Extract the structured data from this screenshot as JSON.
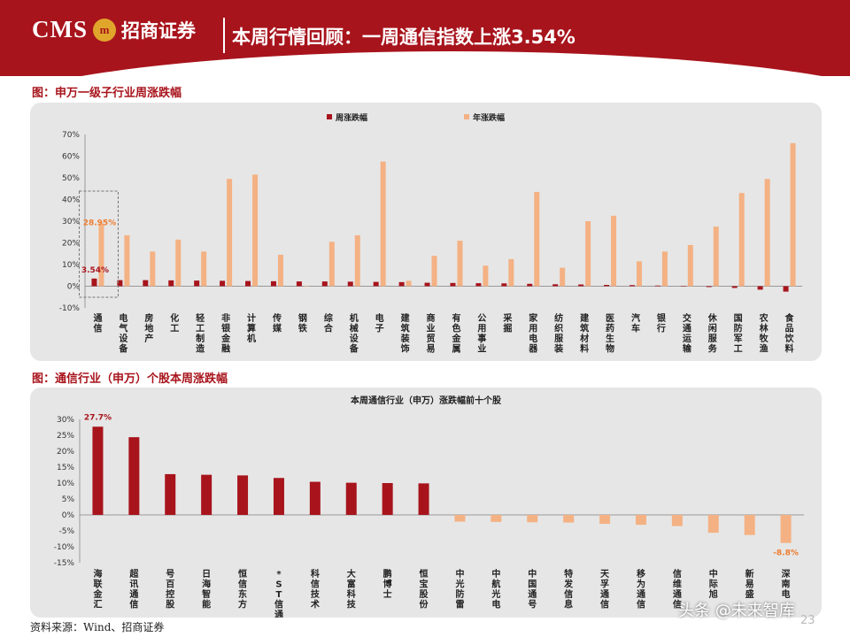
{
  "header": {
    "logo_text": "CMS",
    "logo_emblem": "m",
    "logo_cn": "招商证券",
    "title": "本周行情回顾：一周通信指数上涨3.54%"
  },
  "captions": {
    "chart1": "图：申万一级子行业周涨跌幅",
    "chart2": "图：通信行业（申万）个股本周涨跌幅"
  },
  "footer": {
    "source": "资料来源：Wind、招商证券",
    "page": "23",
    "watermark": "头条 @未来智库"
  },
  "chart_data": [
    {
      "type": "bar",
      "title": "",
      "ylim": [
        -10,
        70
      ],
      "yticks": [
        -10,
        0,
        10,
        20,
        30,
        40,
        50,
        60,
        70
      ],
      "ytick_labels": [
        "-10%",
        "0%",
        "10%",
        "20%",
        "30%",
        "40%",
        "50%",
        "60%",
        "70%"
      ],
      "legend_position": "top-center",
      "grid": false,
      "categories": [
        "通信",
        "电气设备",
        "房地产",
        "化工",
        "轻工制造",
        "非银金融",
        "计算机",
        "传媒",
        "钢铁",
        "综合",
        "机械设备",
        "电子",
        "建筑装饰",
        "商业贸易",
        "有色金属",
        "公用事业",
        "采掘",
        "家用电器",
        "纺织服装",
        "建筑材料",
        "医药生物",
        "汽车",
        "银行",
        "交通运输",
        "休闲服务",
        "国防军工",
        "农林牧渔",
        "食品饮料"
      ],
      "series": [
        {
          "name": "周涨跌幅",
          "color": "#a8141c",
          "values": [
            3.54,
            2.8,
            2.8,
            2.7,
            2.6,
            2.5,
            2.4,
            2.3,
            2.2,
            2.2,
            2.1,
            2.0,
            1.9,
            1.6,
            1.5,
            1.4,
            1.3,
            1.1,
            0.9,
            0.8,
            0.6,
            0.5,
            0.3,
            0.1,
            -0.4,
            -0.8,
            -1.6,
            -2.5
          ]
        },
        {
          "name": "年涨跌幅",
          "color": "#f4b183",
          "values": [
            28.95,
            23.5,
            16,
            21.5,
            16,
            49.5,
            51.5,
            14.5,
            0,
            20.5,
            23.5,
            57.5,
            2.5,
            14,
            21,
            9.5,
            12.5,
            43.5,
            8.5,
            30,
            32.5,
            11.5,
            16,
            19,
            27.5,
            43,
            49.5,
            66
          ]
        }
      ],
      "annotations": [
        {
          "category": "通信",
          "series": "年涨跌幅",
          "text": "28.95%"
        },
        {
          "category": "通信",
          "series": "周涨跌幅",
          "text": "3.54%"
        }
      ]
    },
    {
      "type": "bar",
      "title": "本周通信行业（申万）涨跌幅前十个股",
      "ylim": [
        -15,
        30
      ],
      "yticks": [
        -15,
        -10,
        -5,
        0,
        5,
        10,
        15,
        20,
        25,
        30
      ],
      "ytick_labels": [
        "-15%",
        "-10%",
        "-5%",
        "0%",
        "5%",
        "10%",
        "15%",
        "20%",
        "25%",
        "30%"
      ],
      "grid": false,
      "positive_color": "#a8141c",
      "negative_color": "#f4b183",
      "categories": [
        "海联金汇",
        "超讯通信",
        "号百控股",
        "日海智能",
        "恒信东方",
        "*ST信通",
        "科信技术",
        "大富科技",
        "鹏博士",
        "恒宝股份",
        "中光防雷",
        "中航光电",
        "中国通号",
        "特发信息",
        "天孚通信",
        "移为通信",
        "信维通信",
        "中际旭创",
        "新易盛",
        "深南电路"
      ],
      "values": [
        27.7,
        24.4,
        12.8,
        12.6,
        12.4,
        11.6,
        10.4,
        10.1,
        10.0,
        9.9,
        -2.1,
        -2.2,
        -2.3,
        -2.4,
        -2.8,
        -3.1,
        -3.5,
        -5.6,
        -6.3,
        -8.8
      ],
      "tick_labels_shown": [
        "海联金汇",
        "超讯通信",
        "号百控股",
        "日海智能",
        "恒信东方",
        "*ST信通",
        "科信技术",
        "大富科技",
        "鹏博士",
        "恒宝股份",
        "中光防雷",
        "中航光电",
        "中国通号",
        "特发信息",
        "天孚通信",
        "移为通信",
        "信维通信",
        "中际旭",
        "新易盛",
        "深南电"
      ],
      "annotations": [
        {
          "index": 0,
          "text": "27.7%"
        },
        {
          "index": 19,
          "text": "-8.8%"
        }
      ]
    }
  ]
}
